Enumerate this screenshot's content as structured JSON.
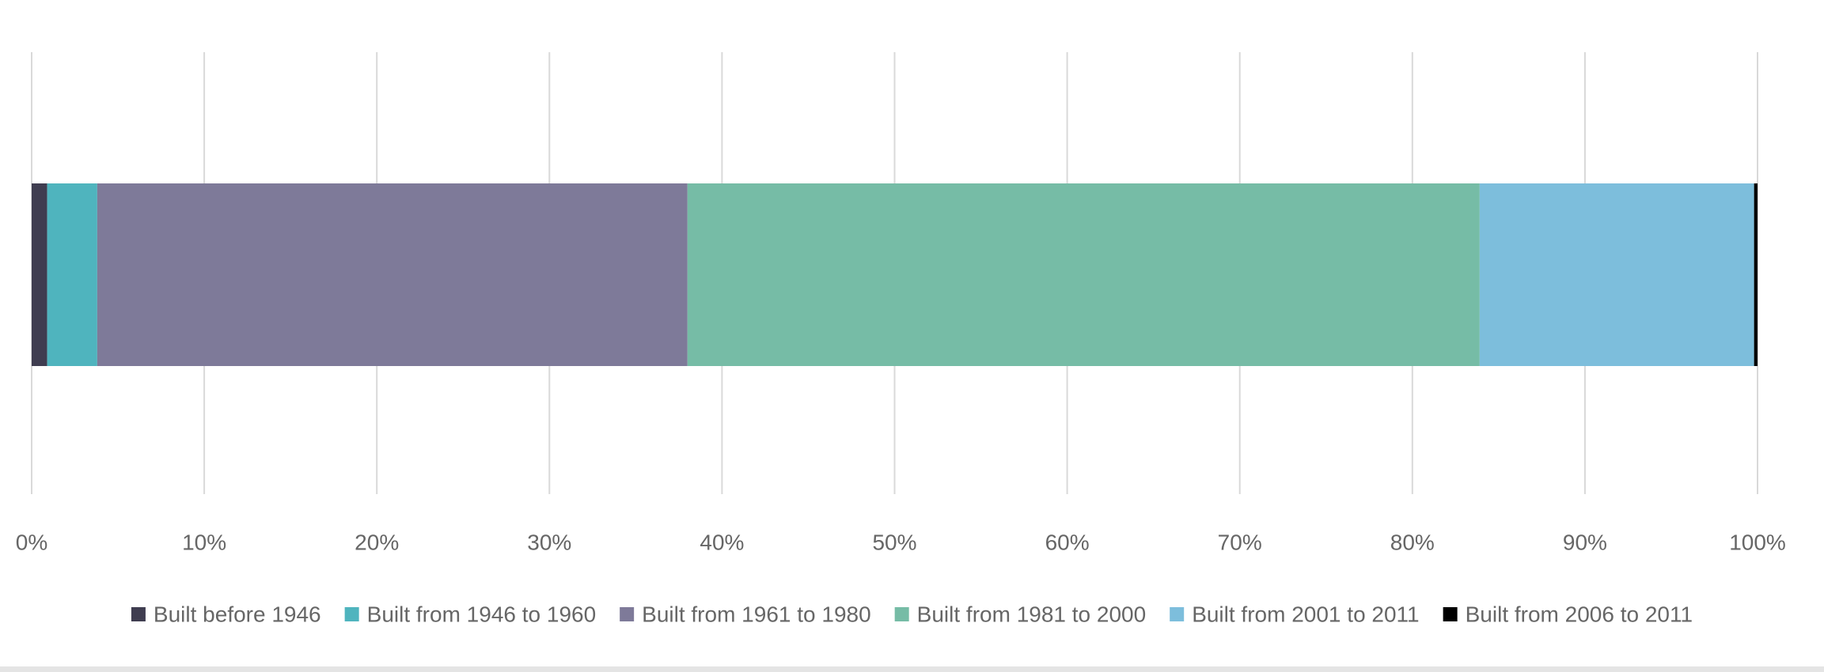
{
  "chart_data": {
    "type": "bar",
    "orientation": "horizontal",
    "stacked": true,
    "series": [
      {
        "name": "Built before 1946",
        "color": "#3f3d50",
        "values": [
          0.9
        ]
      },
      {
        "name": "Built from 1946 to 1960",
        "color": "#4fb4be",
        "values": [
          2.9
        ]
      },
      {
        "name": "Built from 1961 to 1980",
        "color": "#7e7a99",
        "values": [
          34.2
        ]
      },
      {
        "name": "Built from 1981 to 2000",
        "color": "#76bca6",
        "values": [
          45.9
        ]
      },
      {
        "name": "Built from 2001 to 2011",
        "color": "#7dbedc",
        "values": [
          15.9
        ]
      },
      {
        "name": "Built from 2006 to 2011",
        "color": "#000000",
        "values": [
          0.2
        ]
      }
    ],
    "xlim": [
      0,
      100
    ],
    "xticks": [
      {
        "value": 0,
        "label": "0%"
      },
      {
        "value": 10,
        "label": "10%"
      },
      {
        "value": 20,
        "label": "20%"
      },
      {
        "value": 30,
        "label": "30%"
      },
      {
        "value": 40,
        "label": "40%"
      },
      {
        "value": 50,
        "label": "50%"
      },
      {
        "value": 60,
        "label": "60%"
      },
      {
        "value": 70,
        "label": "70%"
      },
      {
        "value": 80,
        "label": "80%"
      },
      {
        "value": 90,
        "label": "90%"
      },
      {
        "value": 100,
        "label": "100%"
      }
    ],
    "grid": true,
    "legend": "bottom"
  }
}
